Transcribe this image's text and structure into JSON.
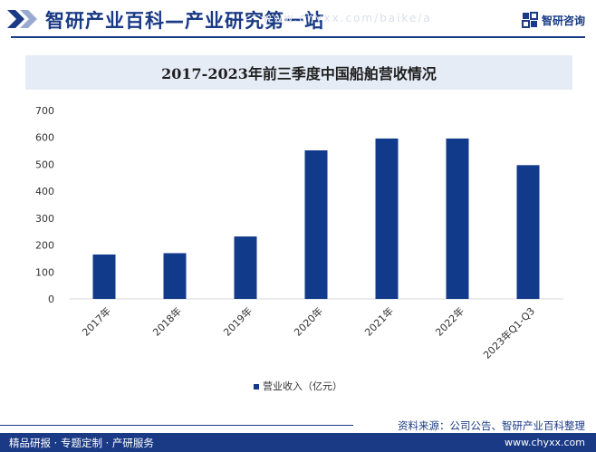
{
  "header": {
    "site_title": "智研产业百科—产业研究第一站",
    "site_subtitle": "www.chyxx.com/baike/a",
    "brand_name": "智研咨询"
  },
  "colors": {
    "bar": "#123a8a",
    "brand": "#1a3a85",
    "title_bg": "#e6ecf6"
  },
  "chart_data": {
    "type": "bar",
    "title": "2017-2023年前三季度中国船舶营收情况",
    "categories": [
      "2017年",
      "2018年",
      "2019年",
      "2020年",
      "2021年",
      "2022年",
      "2023年Q1-Q3"
    ],
    "series": [
      {
        "name": "营业收入（亿元）",
        "values": [
          165,
          170,
          232,
          552,
          596,
          596,
          497
        ]
      }
    ],
    "ylim": [
      0,
      700
    ],
    "yticks": [
      0,
      100,
      200,
      300,
      400,
      500,
      600,
      700
    ],
    "grid": false,
    "legend_position": "bottom"
  },
  "footer": {
    "source": "资料来源：公司公告、智研产业百科整理",
    "tagline": "精品研报 · 专题定制 · 产研服务",
    "website": "www.chyxx.com"
  }
}
